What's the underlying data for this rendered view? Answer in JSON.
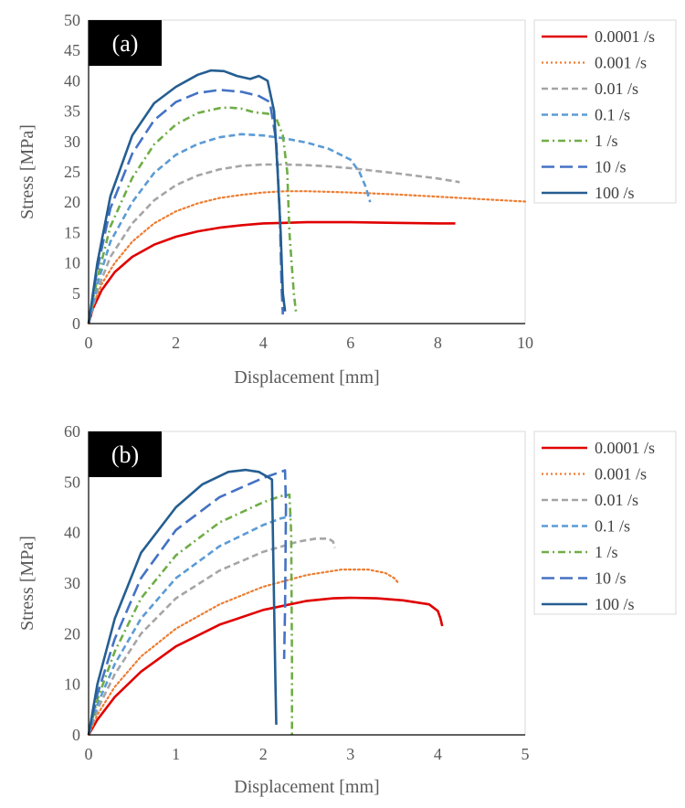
{
  "chart_data": [
    {
      "type": "line",
      "panel_label": "(a)",
      "xlabel": "Displacement [mm]",
      "ylabel": "Stress [MPa]",
      "xlim": [
        0,
        10
      ],
      "ylim": [
        0,
        50
      ],
      "xticks": [
        0,
        2,
        4,
        6,
        8,
        10
      ],
      "yticks": [
        0,
        5,
        10,
        15,
        20,
        25,
        30,
        35,
        40,
        45,
        50
      ],
      "legend_position": "right",
      "series": [
        {
          "name": "0.0001 /s",
          "color": "#e00000",
          "style": "solid",
          "x": [
            0,
            0.1,
            0.3,
            0.6,
            1,
            1.5,
            2,
            2.5,
            3,
            3.5,
            4,
            4.5,
            5,
            5.5,
            6,
            7,
            8,
            8.4
          ],
          "y": [
            0,
            2.5,
            5.5,
            8.5,
            11,
            13,
            14.3,
            15.2,
            15.8,
            16.2,
            16.5,
            16.6,
            16.7,
            16.7,
            16.7,
            16.6,
            16.5,
            16.5
          ]
        },
        {
          "name": "0.001 /s",
          "color": "#ed7d31",
          "style": "dotted",
          "x": [
            0,
            0.1,
            0.3,
            0.6,
            1,
            1.5,
            2,
            2.5,
            3,
            3.5,
            4,
            4.5,
            5,
            5.5,
            6,
            7,
            8,
            9,
            10
          ],
          "y": [
            0,
            3,
            6.5,
            10,
            13.5,
            16.5,
            18.5,
            19.8,
            20.7,
            21.2,
            21.6,
            21.8,
            21.8,
            21.7,
            21.6,
            21.3,
            20.9,
            20.5,
            20.1
          ]
        },
        {
          "name": "0.01 /s",
          "color": "#a5a5a5",
          "style": "dashed",
          "x": [
            0,
            0.2,
            0.5,
            1,
            1.5,
            2,
            2.5,
            3,
            3.5,
            4,
            4.5,
            5,
            5.5,
            6,
            7,
            8,
            8.5
          ],
          "y": [
            0,
            5.5,
            11,
            16.5,
            20.3,
            22.8,
            24.4,
            25.4,
            26,
            26.2,
            26.2,
            26.1,
            25.9,
            25.6,
            24.8,
            23.9,
            23.3
          ]
        },
        {
          "name": "0.1 /s",
          "color": "#5b9bd5",
          "style": "dashed",
          "x": [
            0,
            0.2,
            0.5,
            1,
            1.5,
            2,
            2.5,
            3,
            3.5,
            4,
            4.5,
            5,
            5.5,
            6,
            6.2,
            6.35,
            6.45
          ],
          "y": [
            0,
            6.5,
            13.5,
            20,
            24.8,
            27.8,
            29.6,
            30.7,
            31.2,
            31,
            30.5,
            29.8,
            28.8,
            27,
            25,
            22.5,
            20
          ]
        },
        {
          "name": "1 /s",
          "color": "#70ad47",
          "style": "dashdot",
          "x": [
            0,
            0.2,
            0.5,
            1,
            1.5,
            2,
            2.5,
            3,
            3.2,
            3.5,
            3.8,
            4.1,
            4.3,
            4.45,
            4.55,
            4.6,
            4.7,
            4.75
          ],
          "y": [
            0,
            7.5,
            16,
            24,
            29.5,
            32.8,
            34.7,
            35.5,
            35.6,
            35.4,
            34.8,
            34.6,
            33.8,
            31,
            25,
            15,
            5,
            2
          ]
        },
        {
          "name": "10 /s",
          "color": "#4472c4",
          "style": "longdash",
          "x": [
            0,
            0.2,
            0.5,
            1,
            1.5,
            2,
            2.5,
            3,
            3.5,
            3.9,
            4.15,
            4.3,
            4.38,
            4.42,
            4.45
          ],
          "y": [
            0,
            9,
            19,
            28,
            33.5,
            36.5,
            38,
            38.5,
            38.2,
            37.5,
            36.5,
            30,
            18,
            6,
            1.5
          ]
        },
        {
          "name": "100 /s",
          "color": "#255e91",
          "style": "solid",
          "x": [
            0,
            0.2,
            0.5,
            1,
            1.5,
            2,
            2.5,
            2.8,
            3.1,
            3.4,
            3.7,
            3.9,
            4.1,
            4.25,
            4.33,
            4.4,
            4.45,
            4.5
          ],
          "y": [
            0,
            10,
            21,
            31,
            36.3,
            39,
            41,
            41.7,
            41.6,
            40.8,
            40.3,
            40.8,
            40,
            35,
            25,
            15,
            5,
            2
          ]
        }
      ]
    },
    {
      "type": "line",
      "panel_label": "(b)",
      "xlabel": "Displacement [mm]",
      "ylabel": "Stress [MPa]",
      "xlim": [
        0,
        5
      ],
      "ylim": [
        0,
        60
      ],
      "xticks": [
        0,
        1,
        2,
        3,
        4,
        5
      ],
      "yticks": [
        0,
        10,
        20,
        30,
        40,
        50,
        60
      ],
      "legend_position": "right",
      "series": [
        {
          "name": "0.0001 /s",
          "color": "#e00000",
          "style": "solid",
          "x": [
            0,
            0.1,
            0.3,
            0.6,
            1,
            1.5,
            2,
            2.5,
            2.8,
            3,
            3.3,
            3.6,
            3.9,
            4,
            4.03,
            4.05
          ],
          "y": [
            0,
            3,
            7.5,
            12.5,
            17.5,
            21.8,
            24.7,
            26.5,
            27,
            27.1,
            27,
            26.6,
            25.8,
            24.5,
            23,
            21.5
          ]
        },
        {
          "name": "0.001 /s",
          "color": "#ed7d31",
          "style": "dotted",
          "x": [
            0,
            0.1,
            0.3,
            0.6,
            1,
            1.5,
            2,
            2.5,
            2.9,
            3.2,
            3.4,
            3.5,
            3.55
          ],
          "y": [
            0,
            4,
            9.5,
            15.5,
            21,
            25.8,
            29.3,
            31.6,
            32.7,
            32.7,
            32,
            31,
            30
          ]
        },
        {
          "name": "0.01 /s",
          "color": "#a5a5a5",
          "style": "dashed",
          "x": [
            0,
            0.1,
            0.3,
            0.6,
            1,
            1.5,
            2,
            2.4,
            2.6,
            2.75,
            2.8,
            2.82
          ],
          "y": [
            0,
            5,
            12,
            20,
            27,
            32.5,
            36.2,
            38.2,
            38.8,
            38.8,
            38.2,
            37
          ]
        },
        {
          "name": "0.1 /s",
          "color": "#5b9bd5",
          "style": "dashed",
          "x": [
            0,
            0.1,
            0.3,
            0.6,
            1,
            1.5,
            2,
            2.2,
            2.3,
            2.32
          ],
          "y": [
            0,
            6,
            14,
            23,
            31,
            37.3,
            41.5,
            42.8,
            43.2,
            43.5
          ]
        },
        {
          "name": "1 /s",
          "color": "#70ad47",
          "style": "dashdot",
          "x": [
            0,
            0.1,
            0.3,
            0.6,
            1,
            1.5,
            2,
            2.2,
            2.3,
            2.32,
            2.33,
            2.33
          ],
          "y": [
            0,
            7,
            16.5,
            27,
            35.5,
            42,
            46,
            47.2,
            47.5,
            40,
            15,
            0
          ]
        },
        {
          "name": "10 /s",
          "color": "#4472c4",
          "style": "longdash",
          "x": [
            0,
            0.1,
            0.3,
            0.6,
            1,
            1.5,
            2,
            2.2,
            2.25,
            2.26,
            2.25,
            2.24
          ],
          "y": [
            0,
            8,
            19,
            31,
            40.5,
            47,
            50.8,
            52,
            52.3,
            45,
            25,
            15
          ]
        },
        {
          "name": "100 /s",
          "color": "#255e91",
          "style": "solid",
          "x": [
            0,
            0.1,
            0.3,
            0.6,
            1,
            1.3,
            1.6,
            1.8,
            1.95,
            2.05,
            2.1,
            2.12,
            2.14,
            2.15
          ],
          "y": [
            0,
            10,
            23,
            36,
            45,
            49.5,
            52,
            52.4,
            52,
            51,
            50.5,
            30,
            10,
            2
          ]
        }
      ]
    }
  ]
}
